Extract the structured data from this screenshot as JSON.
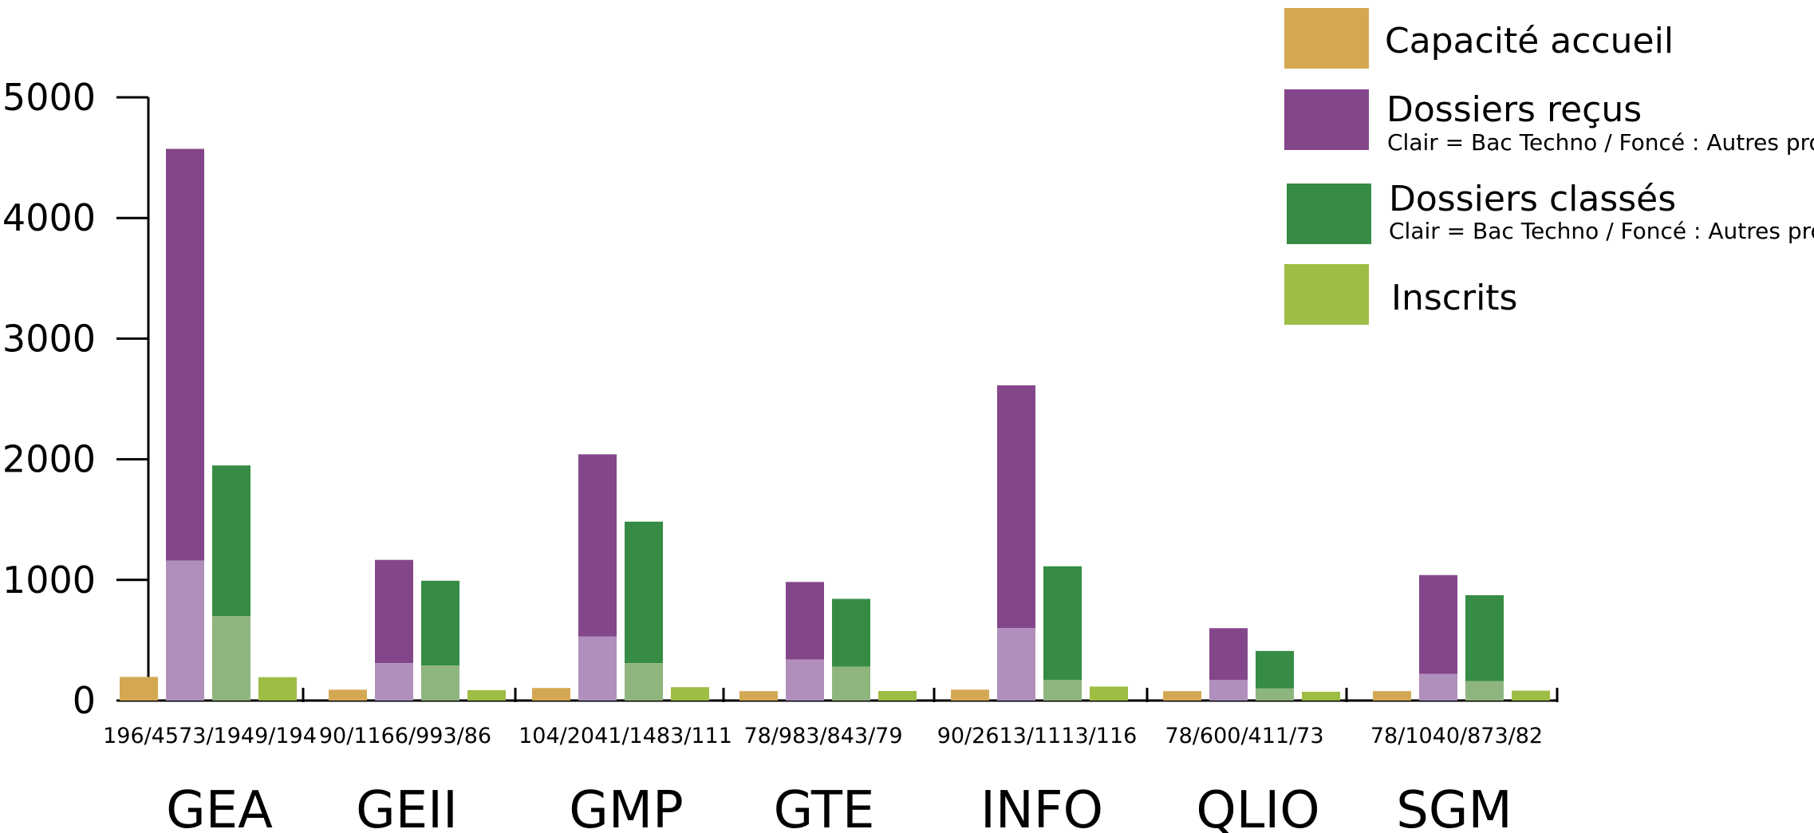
{
  "chart_data": {
    "type": "bar",
    "categories": [
      "GEA",
      "GEII",
      "GMP",
      "GTE",
      "INFO",
      "QLIO",
      "SGM"
    ],
    "category_totals_labels": [
      "196/4573/1949/194",
      "90/1166/993/86",
      "104/2041/1483/111",
      "78/983/843/79",
      "90/2613/1113/116",
      "78/600/411/73",
      "78/1040/873/82"
    ],
    "series": [
      {
        "name": "Capacité accueil",
        "values": [
          196,
          90,
          104,
          78,
          90,
          78,
          78
        ]
      },
      {
        "name": "Dossiers reçus",
        "values": [
          4573,
          1166,
          2041,
          983,
          2613,
          600,
          1040
        ],
        "bac_techno_values": [
          1160,
          310,
          530,
          340,
          600,
          170,
          220
        ]
      },
      {
        "name": "Dossiers classés",
        "values": [
          1949,
          993,
          1483,
          843,
          1113,
          411,
          873
        ],
        "bac_techno_values": [
          700,
          290,
          310,
          280,
          170,
          100,
          160
        ]
      },
      {
        "name": "Inscrits",
        "values": [
          194,
          86,
          111,
          79,
          116,
          73,
          82
        ]
      }
    ],
    "legend_notes": {
      "Dossiers reçus": "Clair = Bac Techno / Foncé : Autres profils",
      "Dossiers classés": "Clair = Bac Techno / Foncé : Autres profils"
    },
    "yticks": [
      0,
      1000,
      2000,
      3000,
      4000,
      5000
    ],
    "ylim": [
      0,
      5000
    ],
    "title": "",
    "xlabel": "",
    "ylabel": "",
    "legend_position": "top-right",
    "grid": false
  },
  "colors": {
    "capacite": "#d4a852",
    "recus_dark": "#84468b",
    "recus_light": "#b08fbc",
    "classes_dark": "#368c44",
    "classes_light": "#8fb57f",
    "inscrits": "#9dbd45"
  }
}
